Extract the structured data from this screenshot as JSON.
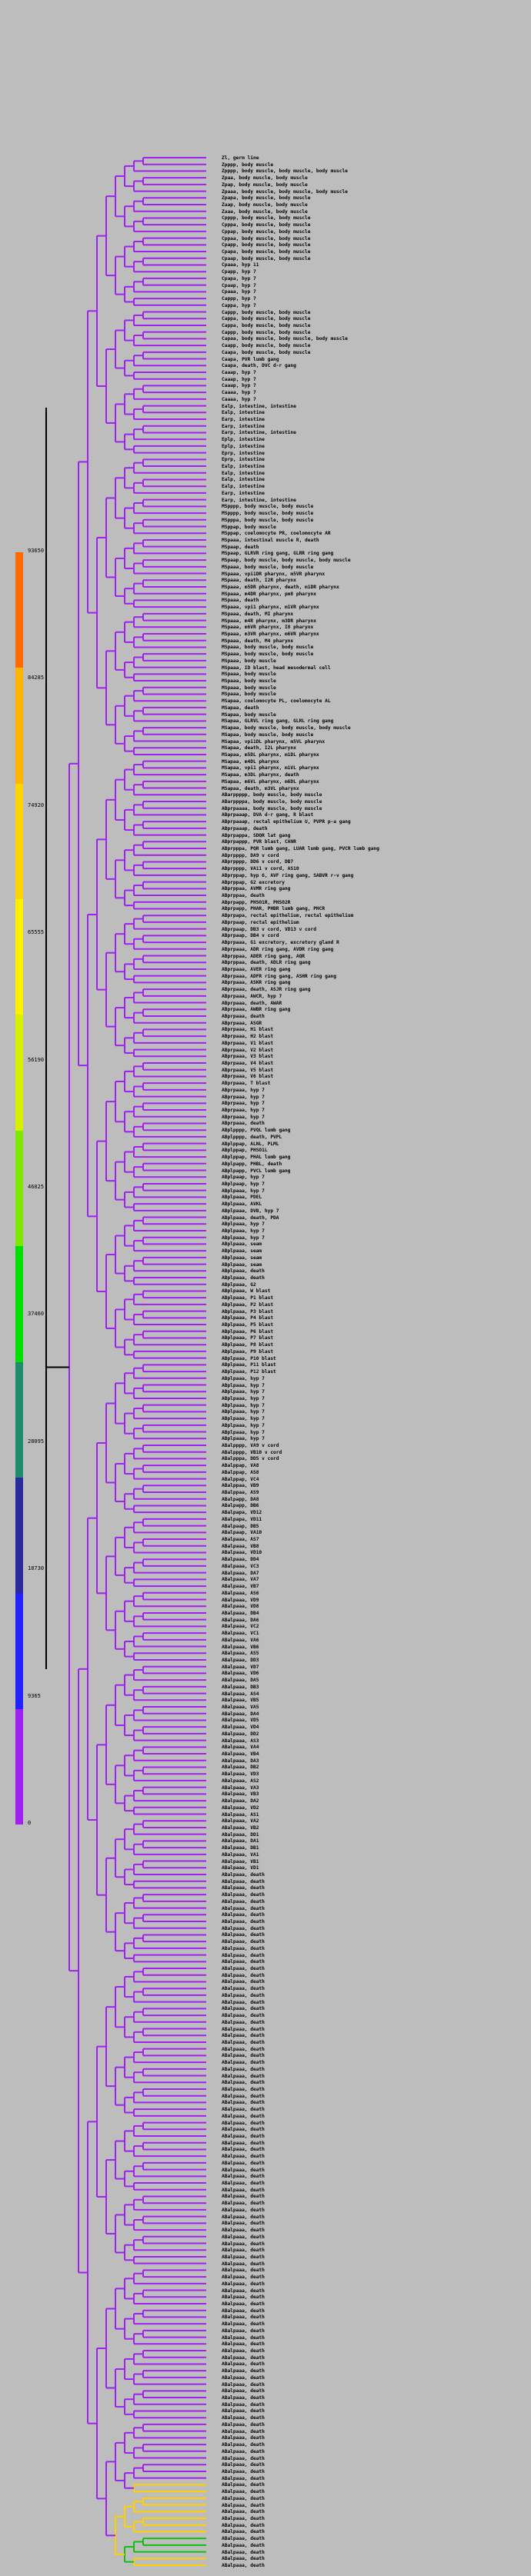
{
  "colorbar": {
    "ticks": [
      "93650",
      "84285",
      "74920",
      "65555",
      "56190",
      "46825",
      "37460",
      "28095",
      "18730",
      "9365",
      "0"
    ],
    "segments": [
      {
        "color": "#ff6a00"
      },
      {
        "color": "#ffb400"
      },
      {
        "color": "#ffd400"
      },
      {
        "color": "#ffef00"
      },
      {
        "color": "#d8f000"
      },
      {
        "color": "#7fe800"
      },
      {
        "color": "#00e000"
      },
      {
        "color": "#1c8c6a"
      },
      {
        "color": "#2a2a9c"
      },
      {
        "color": "#2222ff"
      },
      {
        "color": "#a020f0"
      }
    ]
  },
  "tree": {
    "root": "root",
    "colors": {
      "purple": "#a020f0",
      "blue": "#1010ee",
      "green": "#10c010",
      "yellow": "#ffd000",
      "red": "#e00000",
      "black": "#000000"
    }
  },
  "leaves": [
    "Zl, germ line",
    "Zpppp, body muscle",
    "Zpppp, body muscle, body muscle, body muscle",
    "Zpaa, body muscle, body muscle",
    "Zpap, body muscle, body muscle",
    "Zpaaa, body muscle, body muscle, body muscle",
    "Zpapa, body muscle, body muscle",
    "Zaap, body muscle, body muscle",
    "Zaaa, body muscle, body muscle",
    "Cpppp, body muscle, body muscle",
    "Cpppa, body muscle, body muscle",
    "Cppap, body muscle, body muscle",
    "Cppaa, body muscle, body muscle",
    "Cpapp, body muscle, body muscle",
    "Cpapa, body muscle, body muscle",
    "Cpaap, body muscle, body muscle",
    "Cpaaa, hyp 11",
    "Cpapp, hyp 7",
    "Cpapa, hyp 7",
    "Cpaap, hyp 7",
    "Cpaaa, hyp 7",
    "Cappp, hyp 7",
    "Cappa, hyp 7",
    "Cappp, body muscle, body muscle",
    "Cappa, body muscle, body muscle",
    "Cappa, body muscle, body muscle",
    "Cappp, body muscle, body muscle",
    "Capaa, body muscle, body muscle, body muscle",
    "Caapp, body muscle, body muscle",
    "Caapa, body muscle, body muscle",
    "Caapa, PVR lumb gang",
    "Caapa, death, DVC d-r gang",
    "Caaap, hyp 7",
    "Caaap, hyp 7",
    "Caaap, hyp 7",
    "Caaaa, hyp 7",
    "Caaaa, hyp 7",
    "Ealp, intestine, intestine",
    "Ealp, intestine",
    "Earp, intestine",
    "Earp, intestine",
    "Earp, intestine, intestine",
    "Eplp, intestine",
    "Eplp, intestine",
    "Eprp, intestine",
    "Eprp, intestine",
    "Ealp, intestine",
    "Ealp, intestine",
    "Ealp, intestine",
    "Ealp, intestine",
    "Earp, intestine",
    "Earp, intestine, intestine",
    "MSpppp, body muscle, body muscle",
    "MSpppp, body muscle, body muscle",
    "MSpppa, body muscle, body muscle",
    "MSppap, body muscle",
    "MSppap, coelomocyte PR, coelomocyte AR",
    "MSpaaa, intestinal muscle R, death",
    "MSpaap, death",
    "MSpaap, GLRVR ring gang, GLRR ring gang",
    "MSpaap, body muscle, body muscle, body muscle",
    "MSpaaa, body muscle, body muscle",
    "MSpaaa, vpi1DR pharynx, m5VR pharynx",
    "MSpaaa, death, I2R pharynx",
    "MSpaaa, m5DR pharynx, death, m1DR pharynx",
    "MSpaaa, m4DR pharynx, pm8 pharynx",
    "MSpaaa, death",
    "MSpaaa, vpi1 pharynx, m1VR pharynx",
    "MSpaaa, death, MI pharynx",
    "MSpaaa, m4R pharynx, m3DR pharynx",
    "MSpaaa, m6VR pharynx, I8 pharynx",
    "MSpaaa, m3VR pharynx, m6VR pharynx",
    "MSpaaa, death, M4 pharynx",
    "MSpaaa, body muscle, body muscle",
    "MSpaaa, body muscle, body muscle",
    "MSpaaa, body muscle",
    "MSpaaa, ID blast, head mesodermal cell",
    "MSpaaa, body muscle",
    "MSpaaa, body muscle",
    "MSpaaa, body muscle",
    "MSpaaa, body muscle",
    "MSapaa, coelomocyte PL, coelomocyte AL",
    "MSapaa, death",
    "MSapaa, body muscle",
    "MSapaa, GLRVL ring gang, GLRL ring gang",
    "MSapaa, body muscle, body muscle, body muscle",
    "MSapaa, body muscle, body muscle",
    "MSapaa, vpi1DL pharynx, m5VL pharynx",
    "MSapaa, death, I2L pharynx",
    "MSapaa, m5DL pharynx, m1DL pharynx",
    "MSapaa, m4DL pharynx",
    "MSapaa, vpi1 pharynx, m1VL pharynx",
    "MSapaa, m3DL pharynx, death",
    "MSapaa, m6VL pharynx, m6DL pharynx",
    "MSapaa, death, m3VL pharynx",
    "ABarppppp, body muscle, body muscle",
    "ABarppppa, body muscle, body muscle",
    "ABprpaaaa, body muscle, body muscle",
    "ABprpaaap, DVA d-r gang, R blast",
    "ABprpaaap, rectal epithelium U, PVPR p-a gang",
    "ABprpaaap, death",
    "ABprpappa, SDQR lat gang",
    "ABprpappp, PVR blast, CANR",
    "ABprpppa, PQR lumb gang, LUAR lumb gang, PVCR lumb gang",
    "ABprpppp, DA9 v cord",
    "ABprpppp, DD6 v cord, DB7",
    "ABprpppp, VA11 v cord, AS10",
    "ABprppap, hyp 6, AVF ring gang, SABVR r-v gang",
    "ABprppap, G2 excretory",
    "ABprppaa, AVMR ring gang",
    "ABprppaa, death",
    "ABprpapp, PHSO1R, PHSO2R",
    "ABprpapp, PHAR, PHBR lumb gang, PHCR",
    "ABprpapa, rectal epithelium, rectal epithelium",
    "ABprpaap, rectal epithelium",
    "ABprpaap, DB3 v cord, VD13 v cord",
    "ABprpaap, DB4 v cord",
    "ABprpaaa, G1 excretory, excretory gland R",
    "ABprpaaa, ADR ring gang, AVDR ring gang",
    "ABprppaa, ADER ring gang, AQR",
    "ABprppaa, death, ADLR ring gang",
    "ABprpaaa, AVER ring gang",
    "ABprpaaa, ADFR ring gang, ASHR ring gang",
    "ABprpaaa, ASKR ring gang",
    "ABprpaaa, death, ASJR ring gang",
    "ABprpaaa, AWCR, hyp 7",
    "ABprpaaa, death, AWAR",
    "ABprpaaa, AWBR ring gang",
    "ABprpaaa, death",
    "ABprpaaa, ASGR",
    "ABprpaaa, H1 blast",
    "ABprpaaa, H2 blast",
    "ABprpaaa, V1 blast",
    "ABprpaaa, V2 blast",
    "ABprpaaa, V3 blast",
    "ABprpaaa, V4 blast",
    "ABprpaaa, V5 blast",
    "ABprpaaa, V6 blast",
    "ABprpaaa, T blast",
    "ABprpaaa, hyp 7",
    "ABprpaaa, hyp 7",
    "ABprpaaa, hyp 7",
    "ABprpaaa, hyp 7",
    "ABprpaaa, hyp 7",
    "ABprpaaa, death",
    "ABplpppp, PVQL lumb gang",
    "ABplpppp, death, PVPL",
    "ABplppap, ALNL, PLML",
    "ABplppap, PHSO1L",
    "ABplppap, PHAL lumb gang",
    "ABplpapp, PHBL, death",
    "ABplpapp, PVCL lumb gang",
    "ABplpaap, hyp 7",
    "ABplpaap, hyp 7",
    "ABplpaaa, hyp 7",
    "ABplpaaa, PDEL",
    "ABplpaaa, AVKL",
    "ABplpaaa, DVB, hyp 7",
    "ABplpaaa, death, PDA",
    "ABplpaaa, hyp 7",
    "ABplpaaa, hyp 7",
    "ABplpaaa, hyp 7",
    "ABplpaaa, seam",
    "ABplpaaa, seam",
    "ABplpaaa, seam",
    "ABplpaaa, seam",
    "ABplpaaa, death",
    "ABplpaaa, death",
    "ABplpaaa, G2",
    "ABplpaaa, W blast",
    "ABplpaaa, P1 blast",
    "ABplpaaa, P2 blast",
    "ABplpaaa, P3 blast",
    "ABplpaaa, P4 blast",
    "ABplpaaa, P5 blast",
    "ABplpaaa, P6 blast",
    "ABplpaaa, P7 blast",
    "ABplpaaa, P8 blast",
    "ABplpaaa, P9 blast",
    "ABplpaaa, P10 blast",
    "ABplpaaa, P11 blast",
    "ABplpaaa, P12 blast",
    "ABplpaaa, hyp 7",
    "ABplpaaa, hyp 7",
    "ABplpaaa, hyp 7",
    "ABplpaaa, hyp 7",
    "ABplpaaa, hyp 7",
    "ABplpaaa, hyp 7",
    "ABplpaaa, hyp 7",
    "ABplpaaa, hyp 7",
    "ABplpaaa, hyp 7",
    "ABplpaaa, hyp 7",
    "ABalpppp, VA9 v cord",
    "ABalpppp, VB10 v cord",
    "ABalpppa, DD5 v cord",
    "ABalppap, VA8",
    "ABalppap, AS8",
    "ABalppap, VC4",
    "ABalppaa, VB9",
    "ABalppaa, AS9",
    "ABalpapp, DA8",
    "ABalpapp, DB6",
    "ABalpapa, VD12",
    "ABalpapa, VD11",
    "ABalpaap, DB5",
    "ABalpaap, VA10",
    "ABalpaaa, AS7",
    "ABalpaaa, VB8",
    "ABalpaaa, VD10",
    "ABalpaaa, DD4",
    "ABalpaaa, VC3",
    "ABalpaaa, DA7",
    "ABalpaaa, VA7",
    "ABalpaaa, VB7",
    "ABalpaaa, AS6",
    "ABalpaaa, VD9",
    "ABalpaaa, VD8",
    "ABalpaaa, DB4",
    "ABalpaaa, DA6",
    "ABalpaaa, VC2",
    "ABalpaaa, VC1",
    "ABalpaaa, VA6",
    "ABalpaaa, VB6",
    "ABalpaaa, AS5",
    "ABalpaaa, DD3",
    "ABalpaaa, VD7",
    "ABalpaaa, VD6",
    "ABalpaaa, DA5",
    "ABalpaaa, DB3",
    "ABalpaaa, AS4",
    "ABalpaaa, VB5",
    "ABalpaaa, VA5",
    "ABalpaaa, DA4",
    "ABalpaaa, VD5",
    "ABalpaaa, VD4",
    "ABalpaaa, DD2",
    "ABalpaaa, AS3",
    "ABalpaaa, VA4",
    "ABalpaaa, VB4",
    "ABalpaaa, DA3",
    "ABalpaaa, DB2",
    "ABalpaaa, VD3",
    "ABalpaaa, AS2",
    "ABalpaaa, VA3",
    "ABalpaaa, VB3",
    "ABalpaaa, DA2",
    "ABalpaaa, VD2",
    "ABalpaaa, AS1",
    "ABalpaaa, VA2",
    "ABalpaaa, VB2",
    "ABalpaaa, DD1",
    "ABalpaaa, DA1",
    "ABalpaaa, DB1",
    "ABalpaaa, VA1",
    "ABalpaaa, VB1",
    "ABalpaaa, VD1",
    "ABalpaaa, death",
    "ABalpaaa, death",
    "ABalpaaa, death",
    "ABalpaaa, death",
    "ABalpaaa, death",
    "ABalpaaa, death",
    "ABalpaaa, death",
    "ABalpaaa, death",
    "ABalpaaa, death",
    "ABalpaaa, death",
    "ABalpaaa, death",
    "ABalpaaa, death",
    "ABalpaaa, death",
    "ABalpaaa, death",
    "ABalpaaa, death",
    "ABalpaaa, death",
    "ABalpaaa, death",
    "ABalpaaa, death",
    "ABalpaaa, death",
    "ABalpaaa, death",
    "ABalpaaa, death",
    "ABalpaaa, death",
    "ABalpaaa, death",
    "ABalpaaa, death",
    "ABalpaaa, death",
    "ABalpaaa, death",
    "ABalpaaa, death",
    "ABalpaaa, death",
    "ABalpaaa, death",
    "ABalpaaa, death",
    "ABalpaaa, death",
    "ABalpaaa, death",
    "ABalpaaa, death",
    "ABalpaaa, death",
    "ABalpaaa, death",
    "ABalpaaa, death",
    "ABalpaaa, death",
    "ABalpaaa, death",
    "ABalpaaa, death",
    "ABalpaaa, death",
    "ABalpaaa, death",
    "ABalpaaa, death",
    "ABalpaaa, death",
    "ABalpaaa, death",
    "ABalpaaa, death",
    "ABalpaaa, death",
    "ABalpaaa, death",
    "ABalpaaa, death",
    "ABalpaaa, death",
    "ABalpaaa, death",
    "ABalpaaa, death",
    "ABalpaaa, death",
    "ABalpaaa, death",
    "ABalpaaa, death",
    "ABalpaaa, death",
    "ABalpaaa, death",
    "ABalpaaa, death",
    "ABalpaaa, death",
    "ABalpaaa, death",
    "ABalpaaa, death",
    "ABalpaaa, death",
    "ABalpaaa, death",
    "ABalpaaa, death",
    "ABalpaaa, death",
    "ABalpaaa, death",
    "ABalpaaa, death",
    "ABalpaaa, death",
    "ABalpaaa, death",
    "ABalpaaa, death",
    "ABalpaaa, death",
    "ABalpaaa, death",
    "ABalpaaa, death",
    "ABalpaaa, death",
    "ABalpaaa, death",
    "ABalpaaa, death",
    "ABalpaaa, death",
    "ABalpaaa, death",
    "ABalpaaa, death",
    "ABalpaaa, death",
    "ABalpaaa, death",
    "ABalpaaa, death",
    "ABalpaaa, death",
    "ABalpaaa, death",
    "ABalpaaa, death",
    "ABalpaaa, death",
    "ABalpaaa, death",
    "ABalpaaa, death",
    "ABalpaaa, death",
    "ABalpaaa, death",
    "ABalpaaa, death",
    "ABalpaaa, death",
    "ABalpaaa, death",
    "ABalpaaa, death",
    "ABalpaaa, death",
    "ABalpaaa, death",
    "ABalpaaa, death",
    "ABalpaaa, death",
    "ABalpaaa, death",
    "ABalpaaa, death",
    "ABalpaaa, death",
    "ABalpaaa, death",
    "ABalpaaa, death",
    "ABalpaaa, death",
    "ABalpaaa, death"
  ]
}
